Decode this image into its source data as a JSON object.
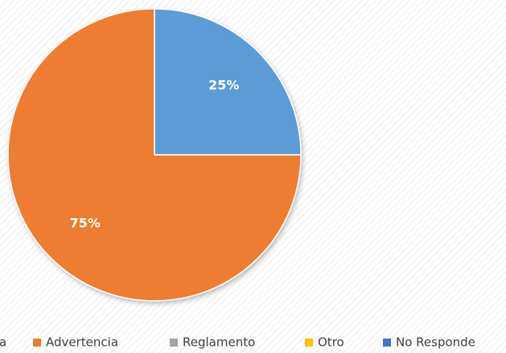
{
  "chart_data": {
    "type": "pie",
    "categories": [
      "a",
      "Advertencia",
      "Reglamento",
      "Otro",
      "No Responde"
    ],
    "values": [
      25,
      75,
      0,
      0,
      0
    ],
    "value_labels": [
      "25%",
      "75%",
      null,
      null,
      null
    ],
    "colors": [
      "#5b9bd5",
      "#ed7d31",
      "#a5a5a5",
      "#ffc000",
      "#4472c4"
    ],
    "legend": "bottom"
  }
}
